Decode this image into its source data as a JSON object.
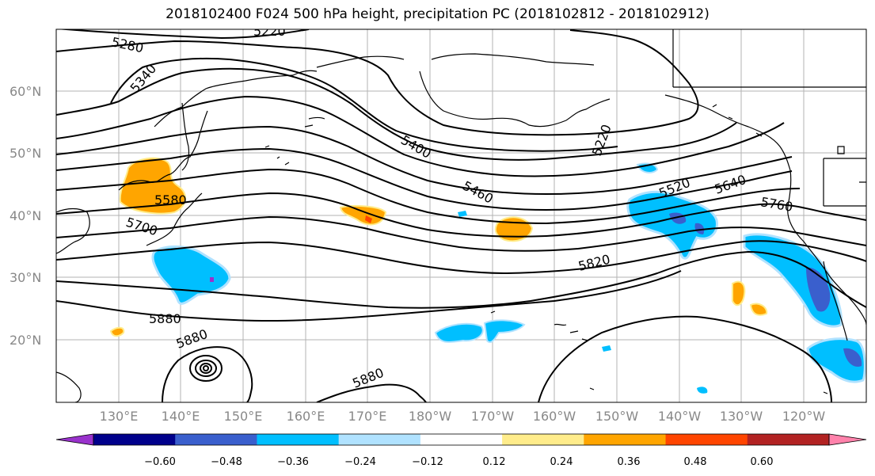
{
  "title": "2018102400 F024 500 hPa height, precipitation PC (2018102812 - 2018102912)",
  "lat_labels": [
    "60°N",
    "50°N",
    "40°N",
    "30°N",
    "20°N"
  ],
  "lon_labels": [
    "130°E",
    "140°E",
    "150°E",
    "160°E",
    "170°E",
    "180°W",
    "170°W",
    "160°W",
    "150°W",
    "140°W",
    "130°W",
    "120°W"
  ],
  "contour_labels": [
    "5220",
    "5280",
    "5340",
    "5400",
    "5460",
    "5580",
    "5700",
    "5880",
    "5880",
    "5880",
    "5220",
    "5520",
    "5640",
    "5760",
    "5820"
  ],
  "colorbar": {
    "ticks": [
      "−0.60",
      "−0.48",
      "−0.36",
      "−0.24",
      "−0.12",
      "0.12",
      "0.24",
      "0.36",
      "0.48",
      "0.60"
    ],
    "colors": [
      "#9932CC",
      "#00008B",
      "#3A5FCD",
      "#00BFFF",
      "#B0E2FF",
      "#FFFFFF",
      "#FFEC8B",
      "#FFA500",
      "#FF4500",
      "#B22222",
      "#FF82AB"
    ]
  }
}
